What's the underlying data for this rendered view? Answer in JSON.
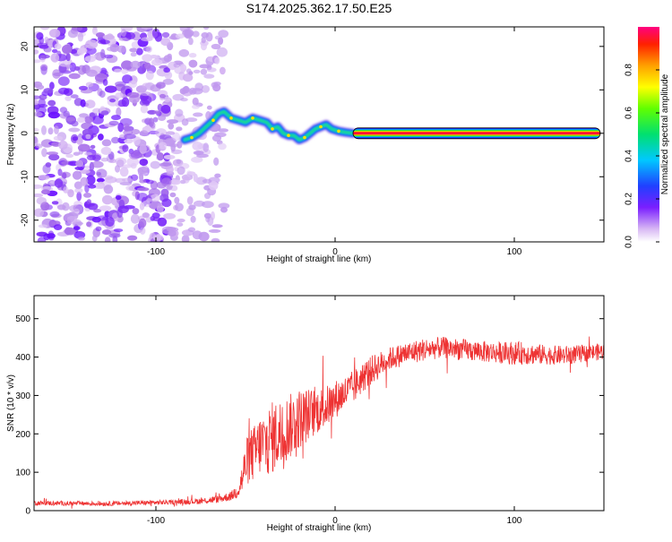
{
  "title": "S174.2025.362.17.50.E25",
  "chart_data": [
    {
      "type": "heatmap",
      "name": "spectrogram",
      "xlabel": "Height of straight line (km)",
      "ylabel": "Frequency (Hz)",
      "xlim": [
        -168,
        150
      ],
      "ylim": [
        -25,
        24.5
      ],
      "x_ticks": [
        -100,
        0,
        100
      ],
      "y_ticks": [
        -20,
        -10,
        0,
        10,
        20
      ],
      "noise_region_x": [
        -168,
        -62
      ],
      "trace_start_x": -84,
      "trace": [
        [
          -84,
          -1.5
        ],
        [
          -80,
          -1
        ],
        [
          -76,
          0
        ],
        [
          -72,
          1.5
        ],
        [
          -68,
          3
        ],
        [
          -65,
          4.5
        ],
        [
          -62,
          5
        ],
        [
          -58,
          3.5
        ],
        [
          -54,
          3
        ],
        [
          -50,
          2.5
        ],
        [
          -46,
          3.5
        ],
        [
          -42,
          3
        ],
        [
          -38,
          2.5
        ],
        [
          -35,
          1
        ],
        [
          -32,
          1.5
        ],
        [
          -29,
          0
        ],
        [
          -26,
          -0.5
        ],
        [
          -23,
          -0.5
        ],
        [
          -20,
          -1.5
        ],
        [
          -17,
          -1
        ],
        [
          -14,
          0
        ],
        [
          -11,
          1
        ],
        [
          -8,
          1.5
        ],
        [
          -5,
          2
        ],
        [
          -2,
          1
        ],
        [
          2,
          0.5
        ],
        [
          6,
          0.2
        ],
        [
          10,
          0
        ]
      ],
      "steady_band": {
        "x": [
          10,
          148
        ],
        "y": 0
      },
      "colorbar": {
        "label": "Normalized spectral amplitude",
        "ticks": [
          0.0,
          0.2,
          0.4,
          0.6,
          0.8
        ],
        "range": [
          0,
          1
        ]
      }
    },
    {
      "type": "line",
      "name": "snr",
      "xlabel": "Height of straight line (km)",
      "ylabel": "SNR (10 * v/v)",
      "xlim": [
        -168,
        150
      ],
      "ylim": [
        0,
        560
      ],
      "x_ticks": [
        -100,
        0,
        100
      ],
      "y_ticks": [
        0,
        100,
        200,
        300,
        400,
        500
      ],
      "color": "#ee3333",
      "series": [
        {
          "name": "SNR",
          "x": [
            -168,
            -150,
            -130,
            -110,
            -90,
            -75,
            -65,
            -58,
            -55,
            -52,
            -50,
            -48,
            -45,
            -42,
            -38,
            -35,
            -30,
            -25,
            -20,
            -15,
            -10,
            -5,
            0,
            5,
            10,
            15,
            20,
            25,
            30,
            40,
            50,
            60,
            70,
            80,
            90,
            100,
            105,
            110,
            120,
            130,
            140,
            150
          ],
          "y": [
            20,
            19,
            18,
            20,
            22,
            25,
            30,
            38,
            50,
            80,
            120,
            140,
            150,
            170,
            180,
            190,
            205,
            220,
            240,
            250,
            260,
            270,
            290,
            305,
            320,
            345,
            365,
            380,
            395,
            410,
            420,
            425,
            420,
            415,
            412,
            410,
            410,
            408,
            405,
            405,
            410,
            415
          ],
          "amp": [
            6,
            6,
            6,
            6,
            6,
            8,
            10,
            12,
            20,
            40,
            60,
            70,
            75,
            80,
            90,
            95,
            90,
            85,
            80,
            70,
            60,
            55,
            50,
            45,
            45,
            40,
            38,
            35,
            30,
            30,
            30,
            28,
            28,
            28,
            28,
            30,
            30,
            28,
            25,
            25,
            22,
            22
          ]
        }
      ]
    }
  ]
}
